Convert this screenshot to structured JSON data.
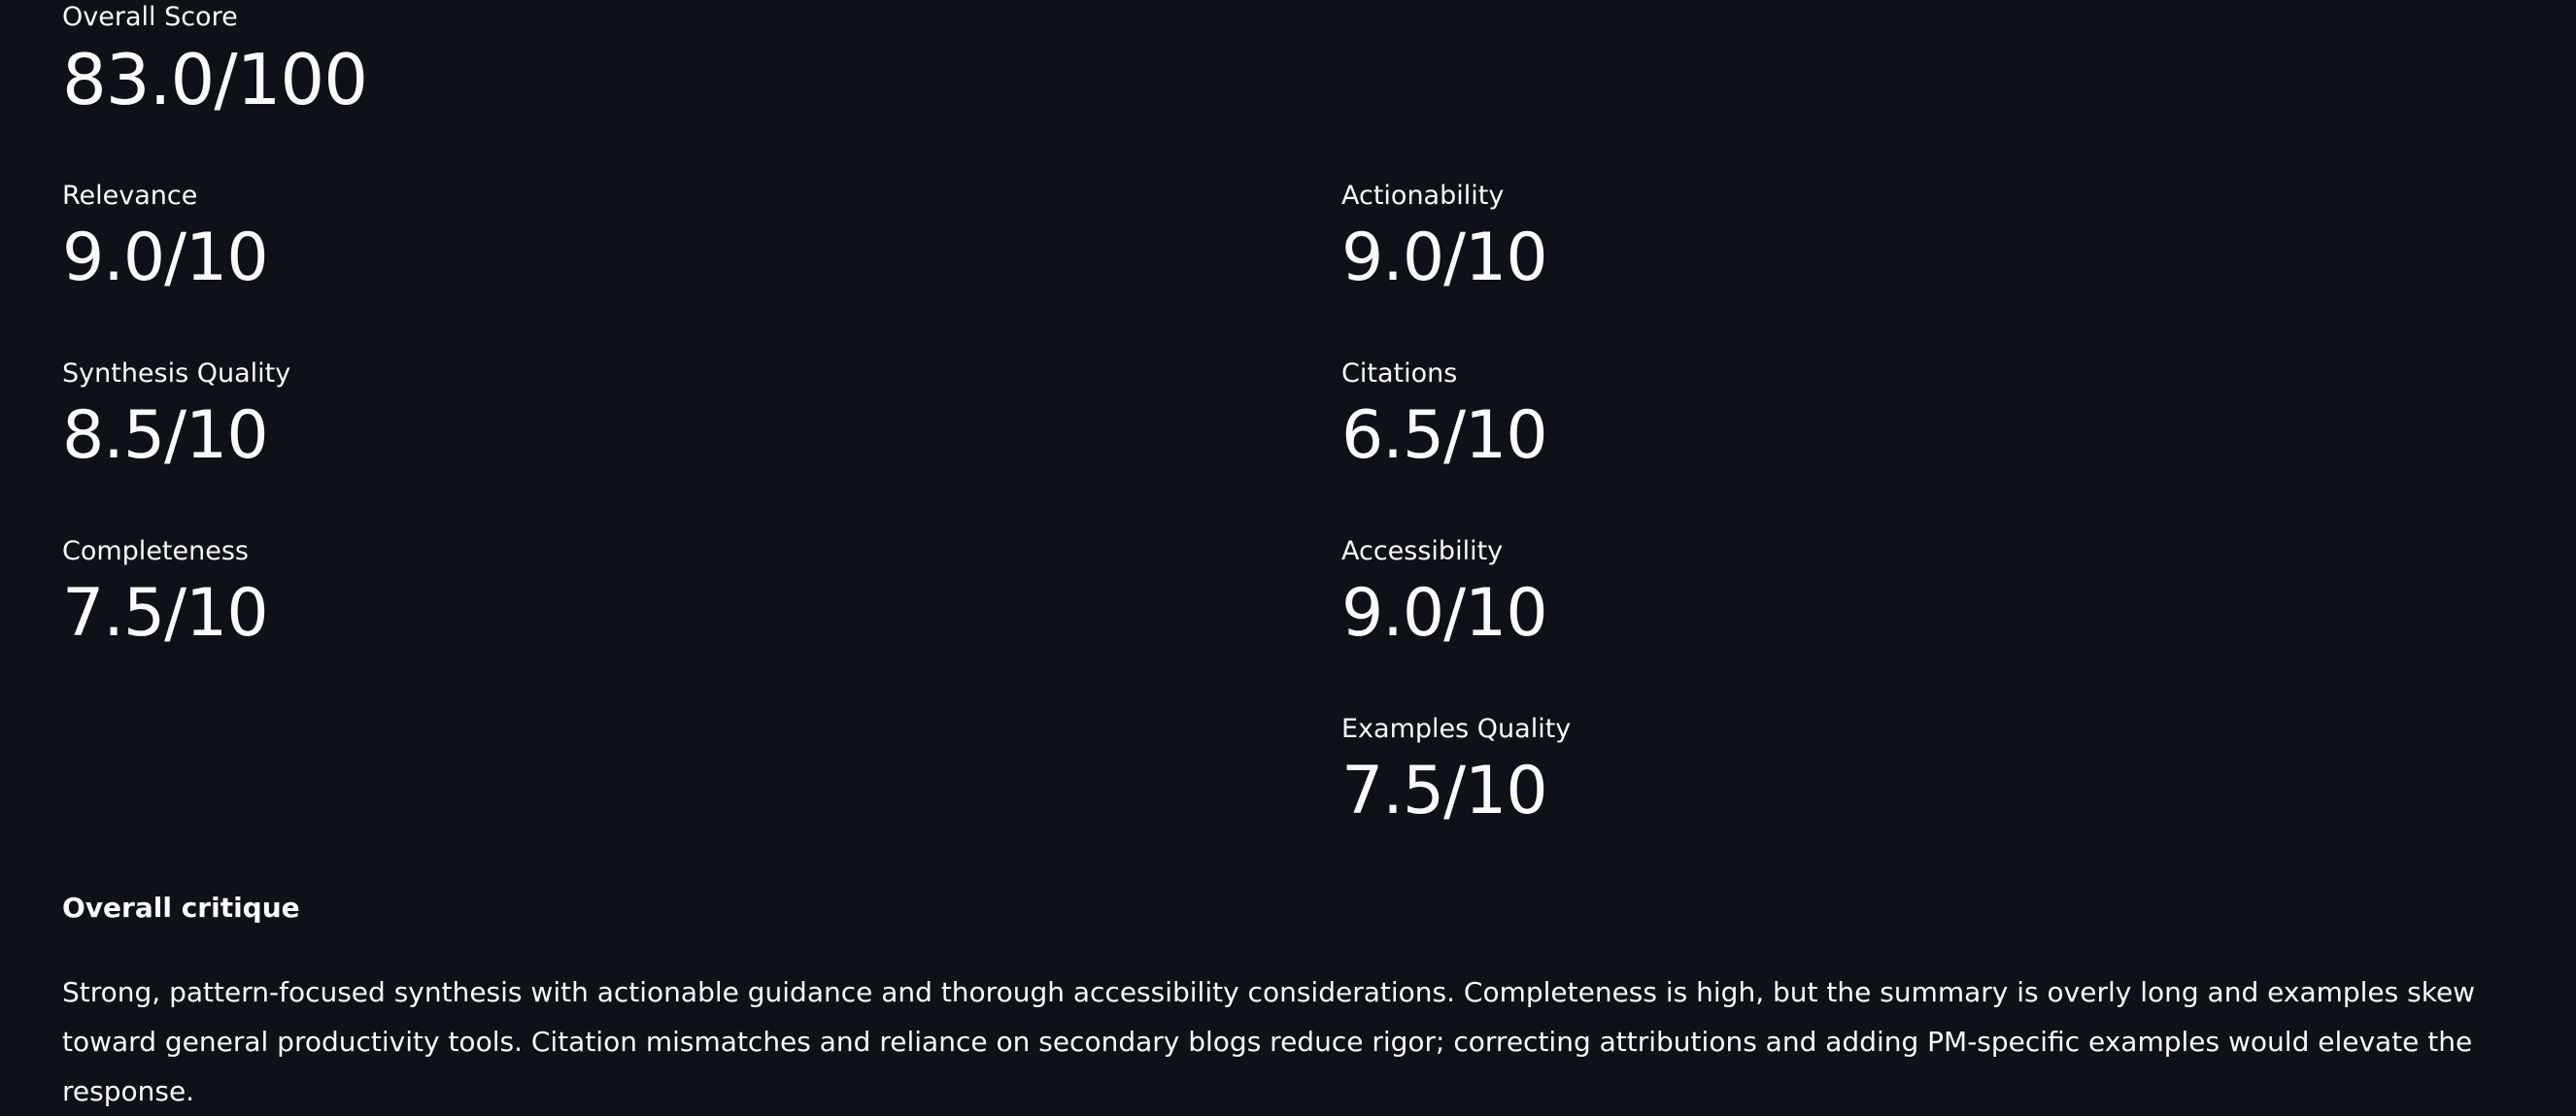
{
  "overall": {
    "label": "Overall Score",
    "value": "83.0/100"
  },
  "left_metrics": [
    {
      "label": "Relevance",
      "value": "9.0/10"
    },
    {
      "label": "Synthesis Quality",
      "value": "8.5/10"
    },
    {
      "label": "Completeness",
      "value": "7.5/10"
    }
  ],
  "right_metrics": [
    {
      "label": "Actionability",
      "value": "9.0/10"
    },
    {
      "label": "Citations",
      "value": "6.5/10"
    },
    {
      "label": "Accessibility",
      "value": "9.0/10"
    },
    {
      "label": "Examples Quality",
      "value": "7.5/10"
    }
  ],
  "critique": {
    "title": "Overall critique",
    "text": "Strong, pattern-focused synthesis with actionable guidance and thorough accessibility considerations. Completeness is high, but the summary is overly long and examples skew toward general productivity tools. Citation mismatches and reliance on secondary blogs reduce rigor; correcting attributions and adding PM-specific examples would elevate the response."
  }
}
